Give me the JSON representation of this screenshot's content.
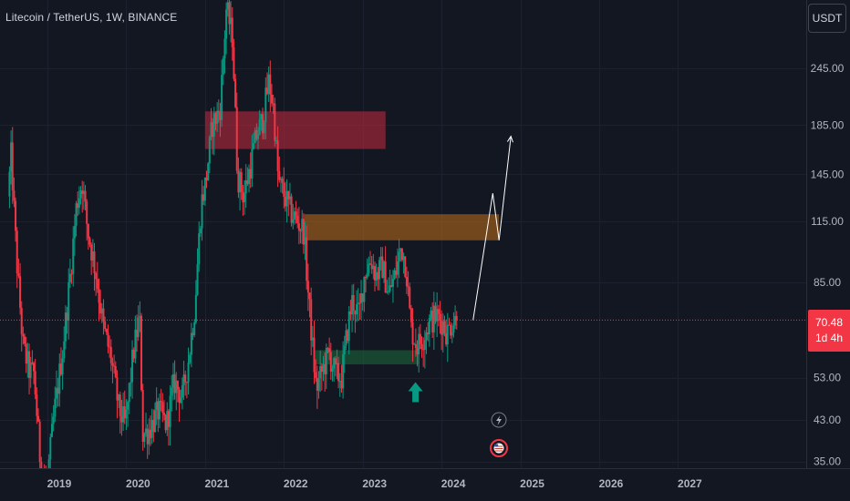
{
  "symbol_title": "Litecoin / TetherUS, 1W, BINANCE",
  "currency_label": "USDT",
  "last_price": {
    "value": "70.48",
    "countdown": "1d 4h",
    "color": "#f23645"
  },
  "colors": {
    "background": "#131722",
    "up": "#089981",
    "down": "#f23645",
    "resistance_zone": "#b2283b",
    "mid_zone": "#b2681a",
    "support_zone": "#1e6b3a",
    "arrow": "#089981",
    "projection": "#ffffff"
  },
  "chart_data": {
    "type": "candlestick",
    "symbol": "Litecoin / TetherUS",
    "interval": "1W",
    "exchange": "BINANCE",
    "y_scale": "log",
    "y_ticks": [
      245.0,
      185.0,
      145.0,
      115.0,
      85.0,
      53.0,
      43.0,
      35.0
    ],
    "y_tick_labels": [
      "245.00",
      "185.00",
      "145.00",
      "115.00",
      "85.00",
      "53.00",
      "43.00",
      "35.00"
    ],
    "x_ticks": [
      "2019",
      "2020",
      "2021",
      "2022",
      "2023",
      "2024",
      "2025",
      "2026",
      "2027"
    ],
    "x_range": [
      2018.48,
      2027.84
    ],
    "y_range": [
      35,
      380
    ],
    "last_price": 70.48,
    "anchor_prices": [
      [
        2018.51,
        130
      ],
      [
        2018.55,
        160
      ],
      [
        2018.62,
        95
      ],
      [
        2018.7,
        62
      ],
      [
        2018.78,
        55
      ],
      [
        2018.84,
        54
      ],
      [
        2018.92,
        35
      ],
      [
        2019.0,
        31
      ],
      [
        2019.1,
        45
      ],
      [
        2019.2,
        60
      ],
      [
        2019.3,
        88
      ],
      [
        2019.38,
        125
      ],
      [
        2019.45,
        140
      ],
      [
        2019.52,
        110
      ],
      [
        2019.62,
        90
      ],
      [
        2019.72,
        68
      ],
      [
        2019.82,
        58
      ],
      [
        2019.92,
        45
      ],
      [
        2020.0,
        42
      ],
      [
        2020.1,
        60
      ],
      [
        2020.18,
        72
      ],
      [
        2020.22,
        40
      ],
      [
        2020.3,
        41
      ],
      [
        2020.42,
        45
      ],
      [
        2020.52,
        42
      ],
      [
        2020.62,
        52
      ],
      [
        2020.72,
        48
      ],
      [
        2020.8,
        58
      ],
      [
        2020.88,
        75
      ],
      [
        2020.96,
        125
      ],
      [
        2021.02,
        140
      ],
      [
        2021.1,
        185
      ],
      [
        2021.2,
        200
      ],
      [
        2021.28,
        330
      ],
      [
        2021.36,
        285
      ],
      [
        2021.42,
        145
      ],
      [
        2021.5,
        130
      ],
      [
        2021.58,
        150
      ],
      [
        2021.66,
        175
      ],
      [
        2021.74,
        190
      ],
      [
        2021.82,
        230
      ],
      [
        2021.88,
        200
      ],
      [
        2021.94,
        140
      ],
      [
        2022.02,
        130
      ],
      [
        2022.1,
        120
      ],
      [
        2022.18,
        115
      ],
      [
        2022.26,
        110
      ],
      [
        2022.32,
        80
      ],
      [
        2022.38,
        60
      ],
      [
        2022.42,
        50
      ],
      [
        2022.5,
        55
      ],
      [
        2022.58,
        60
      ],
      [
        2022.66,
        54
      ],
      [
        2022.74,
        53
      ],
      [
        2022.82,
        68
      ],
      [
        2022.88,
        78
      ],
      [
        2022.96,
        72
      ],
      [
        2023.04,
        90
      ],
      [
        2023.12,
        95
      ],
      [
        2023.18,
        88
      ],
      [
        2023.26,
        92
      ],
      [
        2023.34,
        80
      ],
      [
        2023.42,
        88
      ],
      [
        2023.5,
        102
      ],
      [
        2023.56,
        92
      ],
      [
        2023.62,
        68
      ],
      [
        2023.7,
        62
      ],
      [
        2023.78,
        65
      ],
      [
        2023.86,
        70
      ],
      [
        2023.94,
        72
      ],
      [
        2024.02,
        70
      ],
      [
        2024.08,
        66
      ],
      [
        2024.14,
        70
      ],
      [
        2024.2,
        70.48
      ]
    ],
    "annotations": {
      "horizontal_line": {
        "price": 70.48,
        "style": "dotted"
      },
      "zones": [
        {
          "name": "resistance",
          "x": [
            2021.0,
            2023.29
          ],
          "y": [
            164.4,
            198.0
          ]
        },
        {
          "name": "mid",
          "x": [
            2022.26,
            2024.73
          ],
          "y": [
            104.6,
            119.0
          ]
        },
        {
          "name": "support",
          "x": [
            2022.4,
            2023.71
          ],
          "y": [
            56.6,
            60.7
          ]
        }
      ],
      "arrow_up": {
        "x": 2023.67,
        "y": 48.9
      },
      "projection_path": [
        [
          2024.4,
          70.48
        ],
        [
          2024.65,
          132
        ],
        [
          2024.73,
          104.6
        ],
        [
          2024.88,
          175
        ]
      ]
    }
  }
}
